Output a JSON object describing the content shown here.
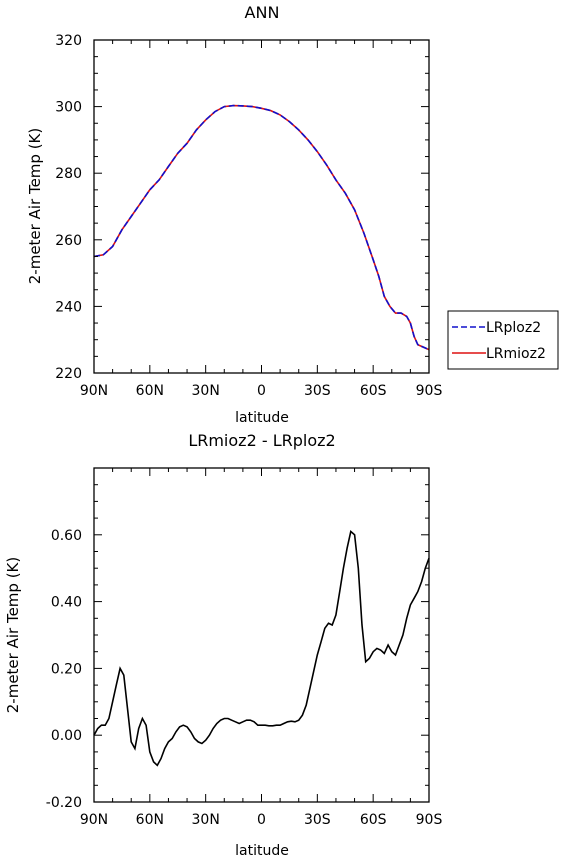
{
  "chart_data": [
    {
      "type": "line",
      "title": "ANN",
      "xlabel": "latitude",
      "ylabel": "2-meter Air Temp (K)",
      "xticklabels": [
        "90N",
        "60N",
        "30N",
        "0",
        "30S",
        "60S",
        "90S"
      ],
      "xlim": [
        90,
        -90
      ],
      "ylim": [
        220,
        320
      ],
      "yticklabels": [
        "220",
        "240",
        "260",
        "280",
        "300",
        "320"
      ],
      "legend": {
        "placement": "right"
      },
      "series": [
        {
          "name": "LRploz2",
          "color": "#1010cc",
          "dash": "dashed",
          "x": [
            90,
            85,
            80,
            75,
            70,
            65,
            60,
            55,
            50,
            45,
            40,
            35,
            30,
            25,
            20,
            15,
            10,
            5,
            0,
            -5,
            -10,
            -15,
            -20,
            -25,
            -30,
            -35,
            -40,
            -45,
            -50,
            -55,
            -60,
            -63,
            -66,
            -69,
            -72,
            -75,
            -78,
            -80,
            -82,
            -84,
            -86,
            -88,
            -90
          ],
          "y": [
            255,
            255.5,
            258,
            263,
            267,
            271,
            275,
            278,
            282,
            286,
            289,
            293,
            296,
            298.5,
            300,
            300.3,
            300.2,
            300,
            299.5,
            298.8,
            297.5,
            295.5,
            293,
            290,
            286.5,
            282.5,
            278,
            274,
            269,
            262,
            254,
            249,
            243,
            240,
            238,
            238,
            237,
            235,
            231,
            228.5,
            228,
            227.5,
            227
          ]
        },
        {
          "name": "LRmioz2",
          "color": "#dd1111",
          "dash": "solid",
          "x": [
            90,
            85,
            80,
            75,
            70,
            65,
            60,
            55,
            50,
            45,
            40,
            35,
            30,
            25,
            20,
            15,
            10,
            5,
            0,
            -5,
            -10,
            -15,
            -20,
            -25,
            -30,
            -35,
            -40,
            -45,
            -50,
            -55,
            -60,
            -63,
            -66,
            -69,
            -72,
            -75,
            -78,
            -80,
            -82,
            -84,
            -86,
            -88,
            -90
          ],
          "y": [
            255,
            255.5,
            258,
            263,
            267,
            271,
            275,
            278,
            282,
            286,
            289,
            293,
            296,
            298.5,
            300,
            300.3,
            300.2,
            300,
            299.5,
            298.8,
            297.5,
            295.5,
            293,
            290,
            286.5,
            282.5,
            278,
            274,
            269,
            262,
            254,
            249,
            243,
            240,
            238,
            238,
            237,
            235,
            231,
            228.5,
            228,
            227.5,
            227
          ]
        }
      ]
    },
    {
      "type": "line",
      "title": "LRmioz2 - LRploz2",
      "xlabel": "latitude",
      "ylabel": "2-meter Air Temp (K)",
      "xticklabels": [
        "90N",
        "60N",
        "30N",
        "0",
        "30S",
        "60S",
        "90S"
      ],
      "xlim": [
        90,
        -90
      ],
      "ylim": [
        -0.2,
        0.8
      ],
      "yticklabels": [
        "-0.20",
        "0.00",
        "0.20",
        "0.40",
        "0.60"
      ],
      "series": [
        {
          "color": "#000000",
          "dash": "solid",
          "x": [
            90,
            88,
            86,
            84,
            82,
            80,
            78,
            76,
            74,
            72,
            70,
            68,
            66,
            64,
            62,
            60,
            58,
            56,
            54,
            52,
            50,
            48,
            46,
            44,
            42,
            40,
            38,
            36,
            34,
            32,
            30,
            28,
            26,
            24,
            22,
            20,
            18,
            16,
            14,
            12,
            10,
            8,
            6,
            4,
            2,
            0,
            -2,
            -4,
            -6,
            -8,
            -10,
            -12,
            -14,
            -16,
            -18,
            -20,
            -22,
            -24,
            -26,
            -28,
            -30,
            -32,
            -34,
            -36,
            -38,
            -40,
            -42,
            -44,
            -46,
            -48,
            -50,
            -52,
            -54,
            -56,
            -58,
            -60,
            -62,
            -64,
            -66,
            -68,
            -70,
            -72,
            -74,
            -76,
            -78,
            -80,
            -82,
            -84,
            -86,
            -88,
            -90
          ],
          "y": [
            0.0,
            0.02,
            0.03,
            0.03,
            0.05,
            0.1,
            0.15,
            0.2,
            0.18,
            0.08,
            -0.02,
            -0.04,
            0.02,
            0.05,
            0.03,
            -0.05,
            -0.08,
            -0.09,
            -0.07,
            -0.04,
            -0.02,
            -0.01,
            0.01,
            0.025,
            0.03,
            0.025,
            0.01,
            -0.01,
            -0.02,
            -0.025,
            -0.015,
            0.0,
            0.02,
            0.035,
            0.045,
            0.05,
            0.05,
            0.045,
            0.04,
            0.035,
            0.04,
            0.045,
            0.045,
            0.04,
            0.03,
            0.03,
            0.03,
            0.028,
            0.028,
            0.03,
            0.03,
            0.035,
            0.04,
            0.042,
            0.04,
            0.045,
            0.06,
            0.09,
            0.14,
            0.19,
            0.24,
            0.28,
            0.32,
            0.335,
            0.33,
            0.36,
            0.43,
            0.5,
            0.56,
            0.61,
            0.6,
            0.5,
            0.33,
            0.22,
            0.23,
            0.25,
            0.26,
            0.255,
            0.245,
            0.27,
            0.25,
            0.24,
            0.27,
            0.3,
            0.35,
            0.39,
            0.41,
            0.43,
            0.46,
            0.5,
            0.53
          ]
        }
      ]
    }
  ]
}
